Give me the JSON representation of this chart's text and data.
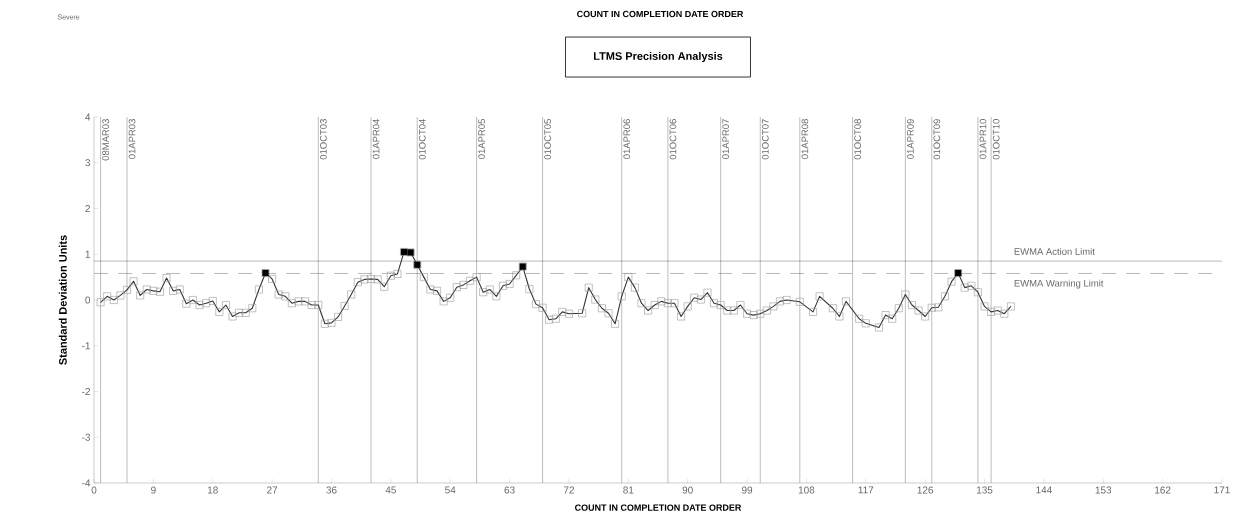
{
  "chart_data": {
    "type": "line",
    "title": "LTMS Precision Analysis",
    "xlabel": "COUNT IN COMPLETION DATE ORDER",
    "ylabel": "Standard Deviation Units",
    "annotations": [
      "Severe",
      "COUNT IN COMPLETION DATE ORDER"
    ],
    "xlim": [
      0,
      171
    ],
    "xticks": [
      0,
      9,
      18,
      27,
      36,
      45,
      54,
      63,
      72,
      81,
      90,
      99,
      108,
      117,
      126,
      135,
      144,
      153,
      162,
      171
    ],
    "ylim": [
      -4,
      4
    ],
    "yticks": [
      -4,
      -3,
      -2,
      -1,
      0,
      1,
      2,
      3,
      4
    ],
    "series": [
      {
        "type": "line",
        "color": "#333333",
        "marker": "square",
        "line_style": "solid",
        "x": [
          1,
          2,
          3,
          4,
          5,
          6,
          7,
          8,
          9,
          10,
          11,
          12,
          13,
          14,
          15,
          16,
          17,
          18,
          19,
          20,
          21,
          22,
          23,
          24,
          25,
          26,
          27,
          28,
          29,
          30,
          31,
          32,
          33,
          34,
          35,
          36,
          37,
          38,
          39,
          40,
          41,
          42,
          43,
          44,
          45,
          46,
          47,
          48,
          49,
          50,
          51,
          52,
          53,
          54,
          55,
          56,
          57,
          58,
          59,
          60,
          61,
          62,
          63,
          64,
          65,
          66,
          67,
          68,
          69,
          70,
          71,
          72,
          74,
          75,
          76,
          77,
          78,
          79,
          80,
          81,
          82,
          83,
          84,
          85,
          86,
          87,
          88,
          89,
          90,
          91,
          92,
          93,
          94,
          95,
          96,
          97,
          98,
          99,
          100,
          101,
          102,
          103,
          104,
          105,
          107,
          109,
          110,
          112,
          113,
          114,
          116,
          117,
          119,
          120,
          121,
          122,
          123,
          124,
          125,
          126,
          127,
          128,
          129,
          130,
          131,
          132,
          133,
          134,
          135,
          136,
          137,
          138,
          139
        ],
        "values": [
          -0.05,
          0.08,
          0.0,
          0.1,
          0.22,
          0.41,
          0.1,
          0.23,
          0.2,
          0.18,
          0.48,
          0.2,
          0.23,
          -0.08,
          0.0,
          -0.11,
          -0.07,
          -0.02,
          -0.26,
          -0.11,
          -0.36,
          -0.28,
          -0.28,
          -0.18,
          0.23,
          0.59,
          0.46,
          0.12,
          0.08,
          -0.07,
          -0.03,
          -0.03,
          -0.11,
          -0.11,
          -0.52,
          -0.5,
          -0.37,
          -0.13,
          0.12,
          0.39,
          0.45,
          0.46,
          0.45,
          0.29,
          0.53,
          0.57,
          1.05,
          1.04,
          0.77,
          0.5,
          0.23,
          0.2,
          -0.03,
          0.05,
          0.28,
          0.33,
          0.42,
          0.5,
          0.17,
          0.23,
          0.08,
          0.31,
          0.35,
          0.54,
          0.73,
          0.24,
          -0.09,
          -0.17,
          -0.43,
          -0.41,
          -0.26,
          -0.3,
          -0.29,
          0.27,
          0.01,
          -0.18,
          -0.29,
          -0.52,
          0.08,
          0.5,
          0.27,
          -0.07,
          -0.23,
          -0.11,
          -0.03,
          -0.07,
          -0.07,
          -0.36,
          -0.14,
          0.05,
          0.01,
          0.16,
          -0.07,
          -0.11,
          -0.23,
          -0.23,
          -0.11,
          -0.3,
          -0.33,
          -0.3,
          -0.23,
          -0.14,
          -0.03,
          0,
          -0.04,
          -0.26,
          0.08,
          -0.18,
          -0.36,
          -0.03,
          -0.41,
          -0.51,
          -0.6,
          -0.33,
          -0.41,
          -0.18,
          0.12,
          -0.11,
          -0.23,
          -0.36,
          -0.17,
          -0.16,
          0.08,
          0.4,
          0.59,
          0.27,
          0.31,
          0.17,
          -0.14,
          -0.26,
          -0.23,
          -0.3,
          -0.14
        ]
      },
      {
        "type": "scatter",
        "color": "#000000",
        "marker": "square",
        "x": [
          26,
          47,
          48,
          49,
          65,
          131
        ],
        "values": [
          0.59,
          1.05,
          1.04,
          0.77,
          0.73,
          0.59
        ]
      }
    ],
    "ref_lines": [
      {
        "axis": "y",
        "value": 0.85,
        "label": "EWMA Action Limit",
        "line_style": "solid"
      },
      {
        "axis": "y",
        "value": 0.58,
        "label": "EWMA Warning Limit",
        "line_style": "dashed"
      },
      {
        "axis": "x",
        "value": 1,
        "label": "08MAR03"
      },
      {
        "axis": "x",
        "value": 5,
        "label": "01APR03"
      },
      {
        "axis": "x",
        "value": 34,
        "label": "01OCT03"
      },
      {
        "axis": "x",
        "value": 42,
        "label": "01APR04"
      },
      {
        "axis": "x",
        "value": 49,
        "label": "01OCT04"
      },
      {
        "axis": "x",
        "value": 58,
        "label": "01APR05"
      },
      {
        "axis": "x",
        "value": 68,
        "label": "01OCT05"
      },
      {
        "axis": "x",
        "value": 80,
        "label": "01APR06"
      },
      {
        "axis": "x",
        "value": 87,
        "label": "01OCT06"
      },
      {
        "axis": "x",
        "value": 95,
        "label": "01APR07"
      },
      {
        "axis": "x",
        "value": 101,
        "label": "01OCT07"
      },
      {
        "axis": "x",
        "value": 107,
        "label": "01APR08"
      },
      {
        "axis": "x",
        "value": 115,
        "label": "01OCT08"
      },
      {
        "axis": "x",
        "value": 123,
        "label": "01APR09"
      },
      {
        "axis": "x",
        "value": 127,
        "label": "01OCT09"
      },
      {
        "axis": "x",
        "value": 134,
        "label": "01APR10"
      },
      {
        "axis": "x",
        "value": 136,
        "label": "01OCT10"
      }
    ]
  }
}
